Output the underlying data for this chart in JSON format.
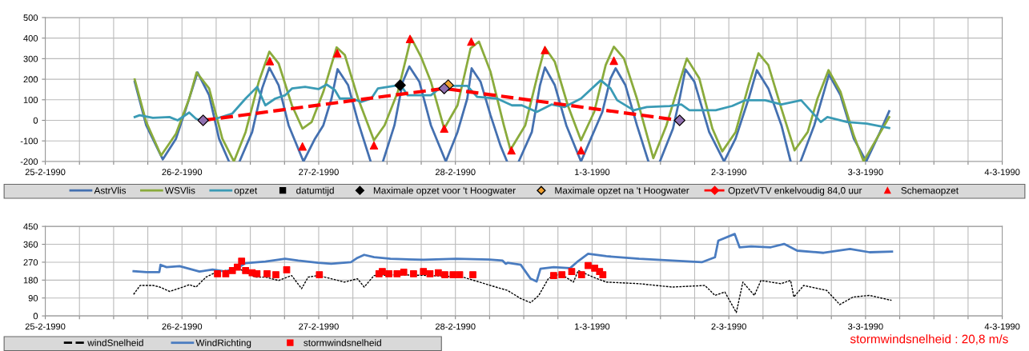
{
  "chart_data": [
    {
      "type": "line",
      "xlim": [
        "1990-02-25",
        "1990-03-04"
      ],
      "ylim": [
        -200,
        500
      ],
      "yticks": [
        -200,
        -100,
        0,
        100,
        200,
        300,
        400,
        500
      ],
      "xticks": [
        {
          "value": "1990-02-25",
          "label": "25-2-1990"
        },
        {
          "value": "1990-02-25T06:00",
          "label": null
        },
        {
          "value": "1990-02-25T12:00",
          "label": null
        },
        {
          "value": "1990-02-25T18:00",
          "label": null
        },
        {
          "value": "1990-02-26",
          "label": "26-2-1990"
        },
        {
          "value": "1990-02-26T06:00",
          "label": null
        },
        {
          "value": "1990-02-26T12:00",
          "label": null
        },
        {
          "value": "1990-02-26T18:00",
          "label": null
        },
        {
          "value": "1990-02-27",
          "label": "27-2-1990"
        },
        {
          "value": "1990-02-27T06:00",
          "label": null
        },
        {
          "value": "1990-02-27T12:00",
          "label": null
        },
        {
          "value": "1990-02-27T18:00",
          "label": null
        },
        {
          "value": "1990-02-28",
          "label": "28-2-1990"
        },
        {
          "value": "1990-02-28T06:00",
          "label": null
        },
        {
          "value": "1990-02-28T12:00",
          "label": null
        },
        {
          "value": "1990-02-28T18:00",
          "label": null
        },
        {
          "value": "1990-03-01",
          "label": "1-3-1990"
        },
        {
          "value": "1990-03-01T06:00",
          "label": null
        },
        {
          "value": "1990-03-01T12:00",
          "label": null
        },
        {
          "value": "1990-03-01T18:00",
          "label": null
        },
        {
          "value": "1990-03-02",
          "label": "2-3-1990"
        },
        {
          "value": "1990-03-02T06:00",
          "label": null
        },
        {
          "value": "1990-03-02T12:00",
          "label": null
        },
        {
          "value": "1990-03-02T18:00",
          "label": null
        },
        {
          "value": "1990-03-03",
          "label": "3-3-1990"
        },
        {
          "value": "1990-03-03T06:00",
          "label": null
        },
        {
          "value": "1990-03-03T12:00",
          "label": null
        },
        {
          "value": "1990-03-03T18:00",
          "label": null
        },
        {
          "value": "1990-03-04",
          "label": "4-3-1990"
        }
      ],
      "grid": true,
      "legend": "bottom",
      "series": [
        {
          "name": "AstrVlis",
          "color": "#4470b0",
          "line_style": "solid",
          "x": [
            "1990-02-25T15:42",
            "1990-02-25T17:43",
            "1990-02-25T20:38",
            "1990-02-25T22:57",
            "1990-02-26T00:42",
            "1990-02-26T02:44",
            "1990-02-26T04:46",
            "1990-02-26T06:30",
            "1990-02-26T08:15",
            "1990-02-26T08:53",
            "1990-02-26T10:06",
            "1990-02-26T12:19",
            "1990-02-26T14:04",
            "1990-02-26T15:20",
            "1990-02-26T16:58",
            "1990-02-26T18:43",
            "1990-02-26T21:20",
            "1990-02-26T23:21",
            "1990-02-27T00:49",
            "1990-02-27T02:15",
            "1990-02-27T03:19",
            "1990-02-27T05:10",
            "1990-02-27T06:55",
            "1990-02-27T09:07",
            "1990-02-27T10:05",
            "1990-02-27T11:17",
            "1990-02-27T13:18",
            "1990-02-27T14:46",
            "1990-02-27T15:55",
            "1990-02-27T17:40",
            "1990-02-27T19:42",
            "1990-02-27T22:19",
            "1990-02-28T00:22",
            "1990-02-28T02:05",
            "1990-02-28T02:51",
            "1990-02-28T04:25",
            "1990-02-28T06:10",
            "1990-02-28T07:54",
            "1990-02-28T09:04",
            "1990-02-28T10:05",
            "1990-02-28T11:07",
            "1990-02-28T13:25",
            "1990-02-28T14:51",
            "1990-02-28T15:43",
            "1990-02-28T17:27",
            "1990-02-28T19:28",
            "1990-02-28T22:03",
            "1990-02-28T23:47",
            "1990-03-01T01:48",
            "1990-03-01T03:14",
            "1990-03-01T04:08",
            "1990-03-01T05:51",
            "1990-03-01T07:52",
            "1990-03-01T09:53",
            "1990-03-01T10:48",
            "1990-03-01T11:54",
            "1990-03-01T14:12",
            "1990-03-01T15:22",
            "1990-03-01T16:23",
            "1990-03-01T17:57",
            "1990-03-01T20:33",
            "1990-03-01T23:10",
            "1990-03-02T01:11",
            "1990-03-02T03:29",
            "1990-03-02T04:55",
            "1990-03-02T06:56",
            "1990-03-02T09:14",
            "1990-03-02T10:51",
            "1990-03-02T11:46",
            "1990-03-02T12:36",
            "1990-03-02T15:00",
            "1990-03-02T17:35",
            "1990-03-02T19:36",
            "1990-03-02T21:56",
            "1990-03-03T00:07",
            "1990-03-03T02:33",
            "1990-03-03T04:09"
          ],
          "values": [
            188,
            -24,
            -190,
            -89,
            57,
            233,
            122,
            -89,
            -200,
            null,
            -200,
            -57,
            155,
            256,
            171,
            -24,
            -200,
            -89,
            -24,
            106,
            249,
            171,
            -8,
            -200,
            null,
            -200,
            -24,
            188,
            262,
            188,
            -24,
            -200,
            -57,
            106,
            253,
            188,
            25,
            -122,
            -200,
            null,
            -200,
            -57,
            171,
            257,
            171,
            -24,
            -200,
            -89,
            41,
            204,
            253,
            171,
            -24,
            -200,
            null,
            -200,
            -40,
            106,
            248,
            188,
            -57,
            -200,
            -89,
            106,
            244,
            155,
            -24,
            -200,
            null,
            -200,
            -24,
            223,
            122,
            -89,
            -200,
            -57,
            44
          ]
        },
        {
          "name": "WSVlis",
          "color": "#8aab3c",
          "line_style": "solid",
          "x": [
            "1990-02-25T15:42",
            "1990-02-25T17:43",
            "1990-02-25T20:20",
            "1990-02-25T22:57",
            "1990-02-26T01:16",
            "1990-02-26T02:34",
            "1990-02-26T04:46",
            "1990-02-26T07:05",
            "1990-02-26T09:07",
            "1990-02-26T11:10",
            "1990-02-26T13:29",
            "1990-02-26T15:20",
            "1990-02-26T16:58",
            "1990-02-26T19:18",
            "1990-02-26T21:09",
            "1990-02-26T22:46",
            "1990-02-27T00:49",
            "1990-02-27T03:09",
            "1990-02-27T04:35",
            "1990-02-27T06:55",
            "1990-02-27T09:42",
            "1990-02-27T11:34",
            "1990-02-27T13:54",
            "1990-02-27T16:13",
            "1990-02-27T17:57",
            "1990-02-27T19:42",
            "1990-02-27T22:02",
            "1990-02-28T00:22",
            "1990-02-28T02:40",
            "1990-02-28T04:08",
            "1990-02-28T06:10",
            "1990-02-28T08:30",
            "1990-02-28T09:40",
            "1990-02-28T12:16",
            "1990-02-28T14:34",
            "1990-02-28T15:43",
            "1990-02-28T17:27",
            "1990-02-28T19:44",
            "1990-02-28T22:03",
            "1990-03-01T00:22",
            "1990-03-01T02:23",
            "1990-03-01T03:49",
            "1990-03-01T05:35",
            "1990-03-01T07:52",
            "1990-03-01T10:45",
            "1990-03-01T13:03",
            "1990-03-01T15:22",
            "1990-03-01T16:38",
            "1990-03-01T18:49",
            "1990-03-01T21:07",
            "1990-03-01T22:51",
            "1990-03-02T01:11",
            "1990-03-02T03:29",
            "1990-03-02T05:12",
            "1990-03-02T06:56",
            "1990-03-02T09:14",
            "1990-03-02T11:33",
            "1990-03-02T13:51",
            "1990-03-02T15:34",
            "1990-03-02T17:30",
            "1990-03-02T19:36",
            "1990-03-02T21:56",
            "1990-03-02T23:40",
            "1990-03-03T01:58",
            "1990-03-03T04:09"
          ],
          "values": [
            199,
            -8,
            -171,
            -65,
            106,
            233,
            155,
            -89,
            -200,
            -57,
            188,
            334,
            277,
            73,
            -40,
            -8,
            139,
            355,
            318,
            106,
            -97,
            -24,
            139,
            402,
            310,
            188,
            -40,
            73,
            350,
            383,
            236,
            -24,
            -143,
            -24,
            236,
            354,
            285,
            73,
            -97,
            41,
            269,
            358,
            301,
            106,
            -184,
            -24,
            188,
            301,
            204,
            -40,
            -151,
            -57,
            171,
            326,
            269,
            57,
            -146,
            -57,
            106,
            244,
            139,
            -73,
            -200,
            -89,
            16
          ]
        },
        {
          "name": "opzet",
          "color": "#3a9bb5",
          "line_style": "solid",
          "x": [
            "1990-02-25T15:42",
            "1990-02-25T16:34",
            "1990-02-25T18:53",
            "1990-02-25T21:48",
            "1990-02-25T23:15",
            "1990-02-26T01:16",
            "1990-02-26T02:27",
            "1990-02-26T03:36",
            "1990-02-26T05:56",
            "1990-02-26T08:50",
            "1990-02-26T11:10",
            "1990-02-26T13:12",
            "1990-02-26T14:38",
            "1990-02-26T16:23",
            "1990-02-26T18:07",
            "1990-02-26T19:18",
            "1990-02-26T21:37",
            "1990-02-26T23:57",
            "1990-02-27T01:24",
            "1990-02-27T02:51",
            "1990-02-27T03:43",
            "1990-02-27T05:46",
            "1990-02-27T07:29",
            "1990-02-27T09:14",
            "1990-02-27T10:23",
            "1990-02-27T13:18",
            "1990-02-27T14:28",
            "1990-02-27T15:37",
            "1990-02-27T17:57",
            "1990-02-27T19:42",
            "1990-02-27T21:45",
            "1990-02-28T00:22",
            "1990-02-28T02:05",
            "1990-02-28T03:50",
            "1990-02-28T07:19",
            "1990-02-28T09:56",
            "1990-02-28T11:41",
            "1990-02-28T14:17",
            "1990-02-28T16:52",
            "1990-02-28T19:10",
            "1990-02-28T22:03",
            "1990-03-01T01:31",
            "1990-03-01T03:14",
            "1990-03-01T04:24",
            "1990-03-01T07:18",
            "1990-03-01T09:36",
            "1990-03-01T13:38",
            "1990-03-01T15:39",
            "1990-03-01T17:05",
            "1990-03-01T21:42",
            "1990-03-02T00:36",
            "1990-03-02T02:54",
            "1990-03-02T06:22",
            "1990-03-02T09:14",
            "1990-03-02T12:42",
            "1990-03-02T16:09",
            "1990-03-02T17:18",
            "1990-03-02T20:46",
            "1990-03-03T00:14",
            "1990-03-03T04:09"
          ],
          "values": [
            16,
            25,
            12,
            16,
            0,
            38,
            8,
            -5,
            8,
            33,
            106,
            163,
            73,
            106,
            122,
            155,
            163,
            152,
            174,
            147,
            106,
            106,
            90,
            106,
            155,
            168,
            168,
            122,
            122,
            122,
            168,
            168,
            168,
            114,
            106,
            73,
            73,
            41,
            77,
            65,
            106,
            195,
            155,
            98,
            49,
            65,
            70,
            77,
            49,
            49,
            70,
            98,
            98,
            77,
            98,
            -8,
            16,
            -8,
            -16,
            -37
          ]
        },
        {
          "name": "datumtijd",
          "type": "scatter",
          "color": "#000000",
          "marker": "square"
        },
        {
          "name": "Maximale opzet voor 't Hoogwater",
          "type": "scatter",
          "color": "#000000",
          "marker": "diamond",
          "x": [
            "1990-02-27T14:18"
          ],
          "values": [
            171
          ]
        },
        {
          "name": "Maximale opzet na 't Hoogwater",
          "type": "scatter",
          "color": "#f0a030",
          "marker": "diamond",
          "x": [
            "1990-02-27T22:44"
          ],
          "values": [
            171
          ]
        },
        {
          "name": "OpzetVTV enkelvoudig 84,0 uur",
          "color": "#ff0000",
          "marker": "diamond",
          "line_style": "dashed",
          "x": [
            "1990-02-26T03:43",
            "1990-02-27T22:02",
            "1990-03-01T15:22"
          ],
          "values": [
            0,
            155,
            0
          ]
        },
        {
          "type": "scatter",
          "color": "#9070b0",
          "marker": "diamond",
          "x": [
            "1990-02-26T03:43",
            "1990-02-27T22:02",
            "1990-03-01T15:22"
          ],
          "values": [
            0,
            155,
            0
          ]
        },
        {
          "name": "Schemaopzet",
          "type": "scatter",
          "color": "#ff0000",
          "marker": "triangle",
          "x": [
            "1990-02-26T15:25",
            "1990-02-26T21:09",
            "1990-02-27T03:16",
            "1990-02-27T09:42",
            "1990-02-27T16:02",
            "1990-02-27T22:02",
            "1990-02-28T02:47",
            "1990-02-28T09:50",
            "1990-02-28T15:43",
            "1990-02-28T22:03",
            "1990-03-01T03:49"
          ],
          "values": [
            288,
            -127,
            326,
            -122,
            396,
            -40,
            383,
            -146,
            342,
            -146,
            290
          ]
        }
      ]
    },
    {
      "type": "line",
      "xlim": [
        "1990-02-25",
        "1990-03-04"
      ],
      "ylim": [
        0,
        450
      ],
      "yticks": [
        0,
        90,
        180,
        270,
        360,
        450
      ],
      "xticks": [
        {
          "value": "1990-02-25",
          "label": "25-2-1990"
        },
        {
          "value": "1990-02-25T06:00",
          "label": null
        },
        {
          "value": "1990-02-25T12:00",
          "label": null
        },
        {
          "value": "1990-02-25T18:00",
          "label": null
        },
        {
          "value": "1990-02-26",
          "label": "26-2-1990"
        },
        {
          "value": "1990-02-26T06:00",
          "label": null
        },
        {
          "value": "1990-02-26T12:00",
          "label": null
        },
        {
          "value": "1990-02-26T18:00",
          "label": null
        },
        {
          "value": "1990-02-27",
          "label": "27-2-1990"
        },
        {
          "value": "1990-02-27T06:00",
          "label": null
        },
        {
          "value": "1990-02-27T12:00",
          "label": null
        },
        {
          "value": "1990-02-27T18:00",
          "label": null
        },
        {
          "value": "1990-02-28",
          "label": "28-2-1990"
        },
        {
          "value": "1990-02-28T06:00",
          "label": null
        },
        {
          "value": "1990-02-28T12:00",
          "label": null
        },
        {
          "value": "1990-02-28T18:00",
          "label": null
        },
        {
          "value": "1990-03-01",
          "label": "1-3-1990"
        },
        {
          "value": "1990-03-01T06:00",
          "label": null
        },
        {
          "value": "1990-03-01T12:00",
          "label": null
        },
        {
          "value": "1990-03-01T18:00",
          "label": null
        },
        {
          "value": "1990-03-02",
          "label": "2-3-1990"
        },
        {
          "value": "1990-03-02T06:00",
          "label": null
        },
        {
          "value": "1990-03-02T12:00",
          "label": null
        },
        {
          "value": "1990-03-02T18:00",
          "label": null
        },
        {
          "value": "1990-03-03",
          "label": "3-3-1990"
        },
        {
          "value": "1990-03-03T06:00",
          "label": null
        },
        {
          "value": "1990-03-03T12:00",
          "label": null
        },
        {
          "value": "1990-03-03T18:00",
          "label": null
        },
        {
          "value": "1990-03-04",
          "label": "4-3-1990"
        }
      ],
      "grid": true,
      "legend": "bottom left",
      "annotations": [
        "stormwindsnelheid : 20,8 m/s"
      ],
      "series": [
        {
          "name": "windSnelheid",
          "color": "#000000",
          "line_style": "dashed",
          "x": [
            "1990-02-25T15:30",
            "1990-02-25T16:39",
            "1990-02-25T18:58",
            "1990-02-25T20:07",
            "1990-02-25T21:50",
            "1990-02-26T00:10",
            "1990-02-26T01:19",
            "1990-02-26T02:28",
            "1990-02-26T04:13",
            "1990-02-26T06:14",
            "1990-02-26T10:00",
            "1990-02-26T12:53",
            "1990-02-26T14:38",
            "1990-02-26T16:57",
            "1990-02-26T19:15",
            "1990-02-26T21:00",
            "1990-02-26T22:09",
            "1990-02-26T23:53",
            "1990-02-27T02:12",
            "1990-02-27T04:31",
            "1990-02-27T06:49",
            "1990-02-27T07:59",
            "1990-02-27T09:43",
            "1990-02-27T13:45",
            "1990-02-27T19:32",
            "1990-02-28T01:19",
            "1990-02-28T04:13",
            "1990-02-28T07:06",
            "1990-02-28T09:10",
            "1990-02-28T11:28",
            "1990-02-28T13:12",
            "1990-02-28T14:38",
            "1990-02-28T16:22",
            "1990-02-28T18:24",
            "1990-02-28T20:43",
            "1990-02-28T21:34",
            "1990-03-01T00:10",
            "1990-03-01T02:30",
            "1990-03-01T08:15",
            "1990-03-01T14:02",
            "1990-03-01T19:49",
            "1990-03-01T21:34",
            "1990-03-01T23:18",
            "1990-03-02T01:19",
            "1990-03-02T02:28",
            "1990-03-02T04:29",
            "1990-03-02T05:38",
            "1990-03-02T09:07",
            "1990-03-02T10:51",
            "1990-03-02T11:25",
            "1990-03-02T13:09",
            "1990-03-02T17:11",
            "1990-03-02T19:29",
            "1990-03-02T21:49",
            "1990-03-03T00:43",
            "1990-03-03T04:34"
          ],
          "values": [
            108,
            153,
            153,
            145,
            123,
            145,
            157,
            145,
            195,
            223,
            237,
            195,
            195,
            178,
            203,
            137,
            195,
            203,
            187,
            170,
            187,
            145,
            203,
            207,
            203,
            195,
            170,
            145,
            128,
            87,
            67,
            103,
            190,
            212,
            170,
            228,
            195,
            170,
            162,
            145,
            153,
            103,
            120,
            17,
            170,
            103,
            178,
            162,
            178,
            95,
            153,
            128,
            57,
            95,
            103,
            78
          ]
        },
        {
          "name": "WindRichting",
          "color": "#4a7cc0",
          "line_style": "solid",
          "x": [
            "1990-02-25T15:30",
            "1990-02-25T17:48",
            "1990-02-25T20:01",
            "1990-02-25T20:14",
            "1990-02-25T21:17",
            "1990-02-25T23:35",
            "1990-02-26T03:04",
            "1990-02-26T05:22",
            "1990-02-26T07:41",
            "1990-02-26T10:00",
            "1990-02-26T11:10",
            "1990-02-26T14:38",
            "1990-02-26T18:06",
            "1990-02-26T20:25",
            "1990-02-26T23:53",
            "1990-02-27T02:12",
            "1990-02-27T05:40",
            "1990-02-27T06:49",
            "1990-02-27T07:59",
            "1990-02-27T09:43",
            "1990-02-27T12:36",
            "1990-02-27T18:23",
            "1990-02-28T00:10",
            "1990-02-28T05:57",
            "1990-02-28T08:17",
            "1990-02-28T08:51",
            "1990-02-28T09:10",
            "1990-02-28T11:28",
            "1990-02-28T13:12",
            "1990-02-28T14:15",
            "1990-02-28T14:56",
            "1990-02-28T17:15",
            "1990-02-28T20:08",
            "1990-02-28T21:19",
            "1990-02-28T23:18",
            "1990-03-01T02:30",
            "1990-03-01T08:15",
            "1990-03-01T14:02",
            "1990-03-01T19:15",
            "1990-03-01T21:34",
            "1990-03-01T22:09",
            "1990-03-02T01:02",
            "1990-03-02T01:53",
            "1990-03-02T03:55",
            "1990-03-02T07:22",
            "1990-03-02T09:42",
            "1990-03-02T12:00",
            "1990-03-02T16:38",
            "1990-03-02T21:16",
            "1990-03-03T00:43",
            "1990-03-03T04:39"
          ],
          "values": [
            225,
            220,
            220,
            257,
            245,
            250,
            223,
            233,
            223,
            245,
            265,
            273,
            287,
            278,
            267,
            262,
            270,
            292,
            307,
            295,
            287,
            282,
            287,
            283,
            278,
            262,
            267,
            257,
            187,
            173,
            237,
            245,
            240,
            270,
            312,
            300,
            287,
            278,
            270,
            295,
            378,
            412,
            345,
            350,
            345,
            362,
            328,
            317,
            337,
            320,
            323
          ]
        },
        {
          "name": "stormwindsnelheid",
          "type": "scatter",
          "color": "#ff0000",
          "marker": "square",
          "x": [
            "1990-02-26T06:14",
            "1990-02-26T07:41",
            "1990-02-26T08:51",
            "1990-02-26T09:43",
            "1990-02-26T10:28",
            "1990-02-26T11:10",
            "1990-02-26T12:19",
            "1990-02-26T13:10",
            "1990-02-26T14:56",
            "1990-02-26T16:29",
            "1990-02-26T18:23",
            "1990-02-27T00:07",
            "1990-02-27T10:35",
            "1990-02-27T11:10",
            "1990-02-27T12:19",
            "1990-02-27T13:45",
            "1990-02-27T14:56",
            "1990-02-27T16:39",
            "1990-02-27T18:23",
            "1990-02-27T19:32",
            "1990-02-27T21:00",
            "1990-02-27T22:09",
            "1990-02-27T23:35",
            "1990-02-28T00:45",
            "1990-02-28T03:04",
            "1990-02-28T17:15",
            "1990-02-28T18:42",
            "1990-02-28T20:25",
            "1990-02-28T22:09",
            "1990-02-28T23:18",
            "1990-03-01T00:27",
            "1990-03-01T01:19",
            "1990-03-01T01:53"
          ],
          "values": [
            212,
            212,
            228,
            245,
            275,
            228,
            217,
            212,
            212,
            207,
            232,
            207,
            212,
            223,
            212,
            212,
            220,
            212,
            223,
            212,
            217,
            207,
            207,
            207,
            207,
            203,
            207,
            223,
            207,
            253,
            240,
            223,
            207
          ]
        }
      ]
    }
  ]
}
